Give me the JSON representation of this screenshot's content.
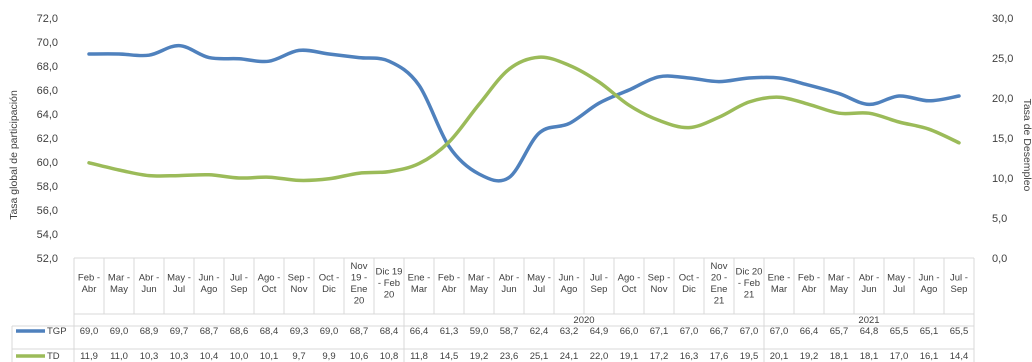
{
  "chart_data": {
    "type": "line",
    "categories": [
      [
        "Feb -",
        "Abr"
      ],
      [
        "Mar -",
        "May"
      ],
      [
        "Abr -",
        "Jun"
      ],
      [
        "May -",
        "Jul"
      ],
      [
        "Jun -",
        "Ago"
      ],
      [
        "Jul -",
        "Sep"
      ],
      [
        "Ago -",
        "Oct"
      ],
      [
        "Sep -",
        "Nov"
      ],
      [
        "Oct -",
        "Dic"
      ],
      [
        "Nov",
        "19 -",
        "Ene",
        "20"
      ],
      [
        "Dic 19",
        "- Feb",
        "20"
      ],
      [
        "Ene -",
        "Mar"
      ],
      [
        "Feb -",
        "Abr"
      ],
      [
        "Mar -",
        "May"
      ],
      [
        "Abr -",
        "Jun"
      ],
      [
        "May -",
        "Jul"
      ],
      [
        "Jun -",
        "Ago"
      ],
      [
        "Jul -",
        "Sep"
      ],
      [
        "Ago -",
        "Oct"
      ],
      [
        "Sep -",
        "Nov"
      ],
      [
        "Oct -",
        "Dic"
      ],
      [
        "Nov",
        "20 -",
        "Ene",
        "21"
      ],
      [
        "Dic 20",
        "- Feb",
        "21"
      ],
      [
        "Ene -",
        "Mar"
      ],
      [
        "Feb -",
        "Abr"
      ],
      [
        "Mar -",
        "May"
      ],
      [
        "Abr -",
        "Jun"
      ],
      [
        "May -",
        "Jul"
      ],
      [
        "Jun -",
        "Ago"
      ],
      [
        "Jul -",
        "Sep"
      ]
    ],
    "year_groups": [
      {
        "label": "",
        "start": 0,
        "end": 10
      },
      {
        "label": "2020",
        "start": 11,
        "end": 22
      },
      {
        "label": "2021",
        "start": 23,
        "end": 29
      }
    ],
    "series": [
      {
        "name": "TGP",
        "axis": "left",
        "color": "#4f81bd",
        "values": [
          69.0,
          69.0,
          68.9,
          69.7,
          68.7,
          68.6,
          68.4,
          69.3,
          69.0,
          68.7,
          68.4,
          66.4,
          61.3,
          59.0,
          58.7,
          62.4,
          63.2,
          64.9,
          66.0,
          67.1,
          67.0,
          66.7,
          67.0,
          67.0,
          66.4,
          65.7,
          64.8,
          65.5,
          65.1,
          65.5
        ],
        "labels": [
          "69,0",
          "69,0",
          "68,9",
          "69,7",
          "68,7",
          "68,6",
          "68,4",
          "69,3",
          "69,0",
          "68,7",
          "68,4",
          "66,4",
          "61,3",
          "59,0",
          "58,7",
          "62,4",
          "63,2",
          "64,9",
          "66,0",
          "67,1",
          "67,0",
          "66,7",
          "67,0",
          "67,0",
          "66,4",
          "65,7",
          "64,8",
          "65,5",
          "65,1",
          "65,5"
        ]
      },
      {
        "name": "TD",
        "axis": "right",
        "color": "#9bbb59",
        "values": [
          11.9,
          11.0,
          10.3,
          10.3,
          10.4,
          10.0,
          10.1,
          9.7,
          9.9,
          10.6,
          10.8,
          11.8,
          14.5,
          19.2,
          23.6,
          25.1,
          24.1,
          22.0,
          19.1,
          17.2,
          16.3,
          17.6,
          19.5,
          20.1,
          19.2,
          18.1,
          18.1,
          17.0,
          16.1,
          14.4
        ],
        "labels": [
          "11,9",
          "11,0",
          "10,3",
          "10,3",
          "10,4",
          "10,0",
          "10,1",
          "9,7",
          "9,9",
          "10,6",
          "10,8",
          "11,8",
          "14,5",
          "19,2",
          "23,6",
          "25,1",
          "24,1",
          "22,0",
          "19,1",
          "17,2",
          "16,3",
          "17,6",
          "19,5",
          "20,1",
          "19,2",
          "18,1",
          "18,1",
          "17,0",
          "16,1",
          "14,4"
        ]
      }
    ],
    "y_left": {
      "label": "Tasa global de participación",
      "min": 52,
      "max": 72,
      "ticks": [
        "52,0",
        "54,0",
        "56,0",
        "58,0",
        "60,0",
        "62,0",
        "64,0",
        "66,0",
        "68,0",
        "70,0",
        "72,0"
      ]
    },
    "y_right": {
      "label": "Tasa de Desempleo",
      "min": 0,
      "max": 30,
      "ticks": [
        "0,0",
        "5,0",
        "10,0",
        "15,0",
        "20,0",
        "25,0",
        "30,0"
      ]
    },
    "legend": "data-table",
    "grid": false
  }
}
